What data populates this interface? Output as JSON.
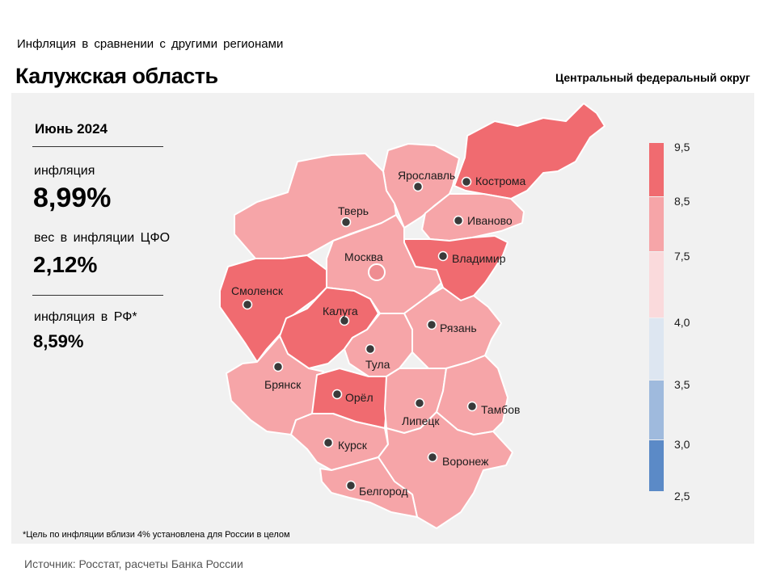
{
  "header": {
    "subtitle": "Инфляция  в сравнении  с другими  регионами",
    "title": "Калужская область",
    "district": "Центральный федеральный округ"
  },
  "stats": {
    "period": "Июнь 2024",
    "inflation_label": "инфляция",
    "inflation_value": "8,99%",
    "weight_label": "вес в инфляции  ЦФО",
    "weight_value": "2,12%",
    "rf_label": "инфляция  в РФ*",
    "rf_value": "8,59%"
  },
  "footnote": "*Цель по инфляции вблизи 4% установлена для России в целом",
  "source": "Источник: Росстат, расчеты Банка России",
  "legend": {
    "ticks": [
      "9,5",
      "8,5",
      "7,5",
      "4,0",
      "3,5",
      "3,0",
      "2,5"
    ],
    "colors": [
      "#f06b70",
      "#f6a5a8",
      "#fadadc",
      "#dde6f1",
      "#9fbadd",
      "#5b8ac7"
    ]
  },
  "map": {
    "highlighted_region": "Калуга",
    "colors": {
      "high": "#f06b70",
      "mid": "#f6a5a8",
      "moscow": "#ef8d91"
    },
    "regions": [
      {
        "name": "Кострома",
        "category": "high"
      },
      {
        "name": "Ярославль",
        "category": "mid"
      },
      {
        "name": "Тверь",
        "category": "mid"
      },
      {
        "name": "Иваново",
        "category": "mid"
      },
      {
        "name": "Москва",
        "category": "mid"
      },
      {
        "name": "Владимир",
        "category": "high"
      },
      {
        "name": "Смоленск",
        "category": "high"
      },
      {
        "name": "Калуга",
        "category": "high"
      },
      {
        "name": "Рязань",
        "category": "mid"
      },
      {
        "name": "Тула",
        "category": "mid"
      },
      {
        "name": "Брянск",
        "category": "mid"
      },
      {
        "name": "Орёл",
        "category": "high"
      },
      {
        "name": "Липецк",
        "category": "mid"
      },
      {
        "name": "Тамбов",
        "category": "mid"
      },
      {
        "name": "Курск",
        "category": "mid"
      },
      {
        "name": "Воронеж",
        "category": "mid"
      },
      {
        "name": "Белгород",
        "category": "mid"
      }
    ]
  }
}
